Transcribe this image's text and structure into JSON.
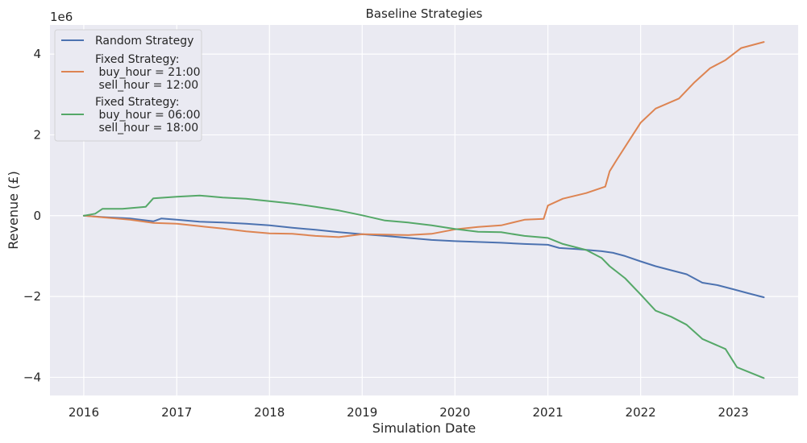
{
  "chart_data": {
    "type": "line",
    "title": "Baseline Strategies",
    "xlabel": "Simulation Date",
    "ylabel": "Revenue (£)",
    "y_offset_label": "1e6",
    "y_scale": 1000000,
    "xlim": [
      "2015-08-21",
      "2023-09-13"
    ],
    "ylim": [
      -4450000,
      4720000
    ],
    "x_ticks": [
      "2016-01-01",
      "2017-01-01",
      "2018-01-01",
      "2019-01-01",
      "2020-01-01",
      "2021-01-01",
      "2022-01-01",
      "2023-01-01"
    ],
    "x_tick_labels": [
      "2016",
      "2017",
      "2018",
      "2019",
      "2020",
      "2021",
      "2022",
      "2023"
    ],
    "y_ticks": [
      -4000000,
      -2000000,
      0,
      2000000,
      4000000
    ],
    "y_tick_labels": [
      "−4",
      "−2",
      "0",
      "2",
      "4"
    ],
    "grid": true,
    "legend_position": "upper-left",
    "series": [
      {
        "name": "Random Strategy",
        "color": "#4c72b0",
        "points": [
          [
            "2016-01-01",
            0
          ],
          [
            "2016-04-01",
            -40000
          ],
          [
            "2016-07-01",
            -70000
          ],
          [
            "2016-10-01",
            -140000
          ],
          [
            "2016-11-01",
            -70000
          ],
          [
            "2017-01-01",
            -100000
          ],
          [
            "2017-04-01",
            -150000
          ],
          [
            "2017-07-01",
            -170000
          ],
          [
            "2017-10-01",
            -200000
          ],
          [
            "2018-01-01",
            -240000
          ],
          [
            "2018-04-01",
            -300000
          ],
          [
            "2018-07-01",
            -350000
          ],
          [
            "2018-10-01",
            -410000
          ],
          [
            "2019-01-01",
            -460000
          ],
          [
            "2019-04-01",
            -500000
          ],
          [
            "2019-07-01",
            -550000
          ],
          [
            "2019-10-01",
            -600000
          ],
          [
            "2020-01-01",
            -630000
          ],
          [
            "2020-04-01",
            -650000
          ],
          [
            "2020-07-01",
            -670000
          ],
          [
            "2020-10-01",
            -700000
          ],
          [
            "2021-01-01",
            -720000
          ],
          [
            "2021-02-15",
            -800000
          ],
          [
            "2021-05-01",
            -830000
          ],
          [
            "2021-08-01",
            -880000
          ],
          [
            "2021-09-15",
            -920000
          ],
          [
            "2021-11-01",
            -1000000
          ],
          [
            "2022-01-01",
            -1130000
          ],
          [
            "2022-03-01",
            -1250000
          ],
          [
            "2022-05-01",
            -1350000
          ],
          [
            "2022-07-01",
            -1450000
          ],
          [
            "2022-09-01",
            -1660000
          ],
          [
            "2022-11-01",
            -1720000
          ],
          [
            "2023-01-01",
            -1820000
          ],
          [
            "2023-03-01",
            -1920000
          ],
          [
            "2023-05-01",
            -2020000
          ]
        ]
      },
      {
        "name": "Fixed Strategy:\n buy_hour = 21:00\n sell_hour = 12:00",
        "color": "#dd8452",
        "points": [
          [
            "2016-01-01",
            0
          ],
          [
            "2016-04-01",
            -50000
          ],
          [
            "2016-07-01",
            -100000
          ],
          [
            "2016-10-01",
            -180000
          ],
          [
            "2017-01-01",
            -200000
          ],
          [
            "2017-04-01",
            -260000
          ],
          [
            "2017-07-01",
            -320000
          ],
          [
            "2017-10-01",
            -390000
          ],
          [
            "2018-01-01",
            -440000
          ],
          [
            "2018-04-01",
            -450000
          ],
          [
            "2018-07-01",
            -500000
          ],
          [
            "2018-10-01",
            -530000
          ],
          [
            "2019-01-01",
            -460000
          ],
          [
            "2019-04-01",
            -470000
          ],
          [
            "2019-07-01",
            -480000
          ],
          [
            "2019-10-01",
            -450000
          ],
          [
            "2020-01-01",
            -340000
          ],
          [
            "2020-04-01",
            -280000
          ],
          [
            "2020-07-01",
            -240000
          ],
          [
            "2020-10-01",
            -100000
          ],
          [
            "2020-12-15",
            -80000
          ],
          [
            "2021-01-01",
            250000
          ],
          [
            "2021-03-01",
            420000
          ],
          [
            "2021-06-01",
            560000
          ],
          [
            "2021-08-15",
            720000
          ],
          [
            "2021-09-01",
            1100000
          ],
          [
            "2021-10-01",
            1400000
          ],
          [
            "2021-12-01",
            2000000
          ],
          [
            "2022-01-01",
            2300000
          ],
          [
            "2022-03-01",
            2650000
          ],
          [
            "2022-06-01",
            2900000
          ],
          [
            "2022-08-01",
            3300000
          ],
          [
            "2022-10-01",
            3650000
          ],
          [
            "2022-12-01",
            3850000
          ],
          [
            "2023-02-01",
            4150000
          ],
          [
            "2023-05-01",
            4300000
          ]
        ]
      },
      {
        "name": "Fixed Strategy:\n buy_hour = 06:00\n sell_hour = 18:00",
        "color": "#55a868",
        "points": [
          [
            "2016-01-01",
            0
          ],
          [
            "2016-02-15",
            50000
          ],
          [
            "2016-03-15",
            170000
          ],
          [
            "2016-06-01",
            170000
          ],
          [
            "2016-09-01",
            220000
          ],
          [
            "2016-10-01",
            430000
          ],
          [
            "2017-01-01",
            470000
          ],
          [
            "2017-04-01",
            500000
          ],
          [
            "2017-07-01",
            450000
          ],
          [
            "2017-10-01",
            420000
          ],
          [
            "2018-01-01",
            360000
          ],
          [
            "2018-04-01",
            300000
          ],
          [
            "2018-07-01",
            220000
          ],
          [
            "2018-10-01",
            130000
          ],
          [
            "2019-01-01",
            10000
          ],
          [
            "2019-04-01",
            -120000
          ],
          [
            "2019-07-01",
            -170000
          ],
          [
            "2019-10-01",
            -240000
          ],
          [
            "2020-01-01",
            -330000
          ],
          [
            "2020-04-01",
            -400000
          ],
          [
            "2020-07-01",
            -410000
          ],
          [
            "2020-10-01",
            -500000
          ],
          [
            "2021-01-01",
            -550000
          ],
          [
            "2021-03-01",
            -700000
          ],
          [
            "2021-06-01",
            -850000
          ],
          [
            "2021-08-01",
            -1050000
          ],
          [
            "2021-09-01",
            -1250000
          ],
          [
            "2021-11-01",
            -1550000
          ],
          [
            "2022-01-01",
            -1950000
          ],
          [
            "2022-03-01",
            -2350000
          ],
          [
            "2022-05-01",
            -2500000
          ],
          [
            "2022-07-01",
            -2700000
          ],
          [
            "2022-09-01",
            -3050000
          ],
          [
            "2022-12-01",
            -3300000
          ],
          [
            "2023-01-15",
            -3750000
          ],
          [
            "2023-05-01",
            -4020000
          ]
        ]
      }
    ]
  }
}
